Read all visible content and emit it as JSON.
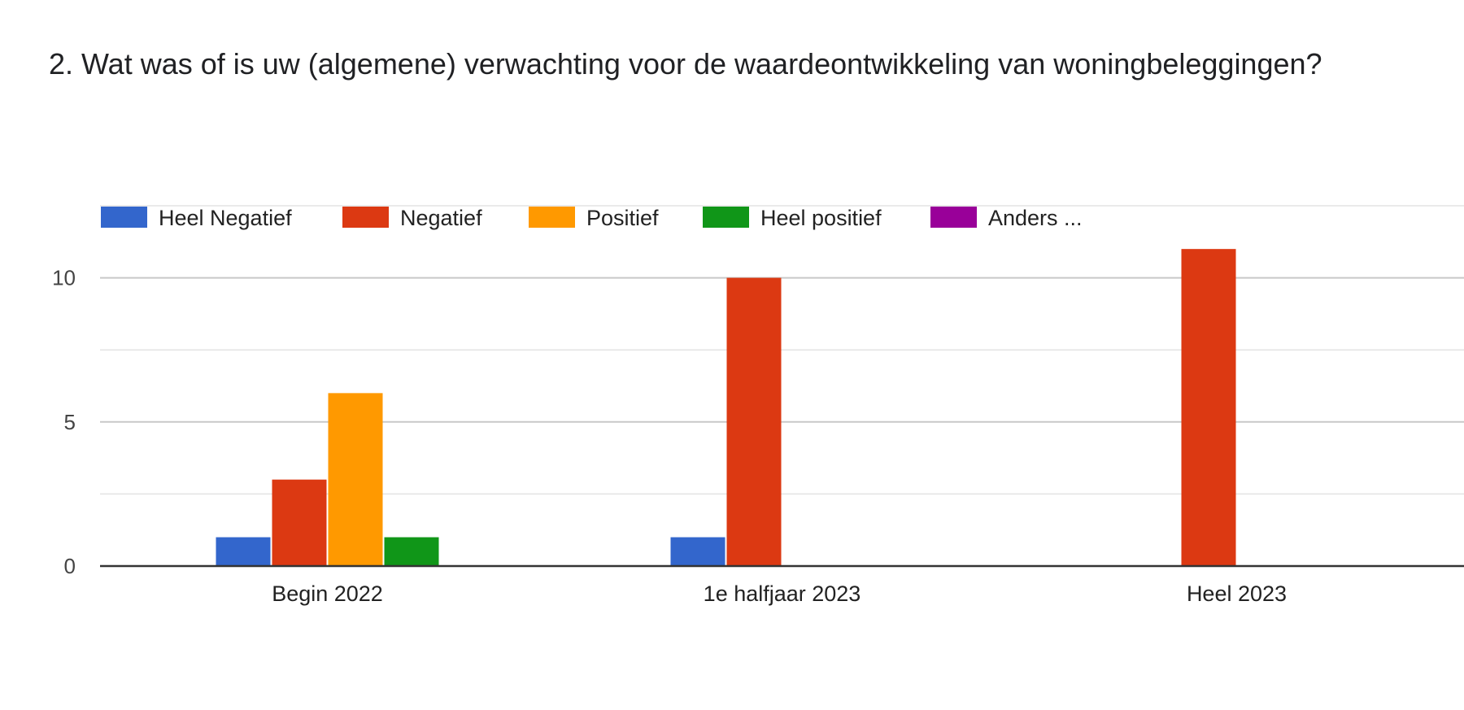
{
  "question": {
    "title": "2. Wat was of is uw (algemene) verwachting voor de waardeontwikkeling van woningbeleggingen?"
  },
  "chart_data": {
    "type": "bar",
    "categories": [
      "Begin 2022",
      "1e halfjaar 2023",
      "Heel 2023"
    ],
    "series": [
      {
        "name": "Heel Negatief",
        "color": "#3366cc",
        "values": [
          1,
          1,
          0
        ]
      },
      {
        "name": "Negatief",
        "color": "#dc3912",
        "values": [
          3,
          10,
          11
        ]
      },
      {
        "name": "Positief",
        "color": "#ff9900",
        "values": [
          6,
          0,
          0
        ]
      },
      {
        "name": "Heel positief",
        "color": "#109618",
        "values": [
          1,
          0,
          0
        ]
      },
      {
        "name": "Anders ...",
        "color": "#990099",
        "values": [
          0,
          0,
          0
        ]
      }
    ],
    "y_ticks": [
      0,
      5,
      10
    ],
    "ylim": [
      0,
      12.5
    ],
    "grid": true,
    "legend_position": "top"
  }
}
